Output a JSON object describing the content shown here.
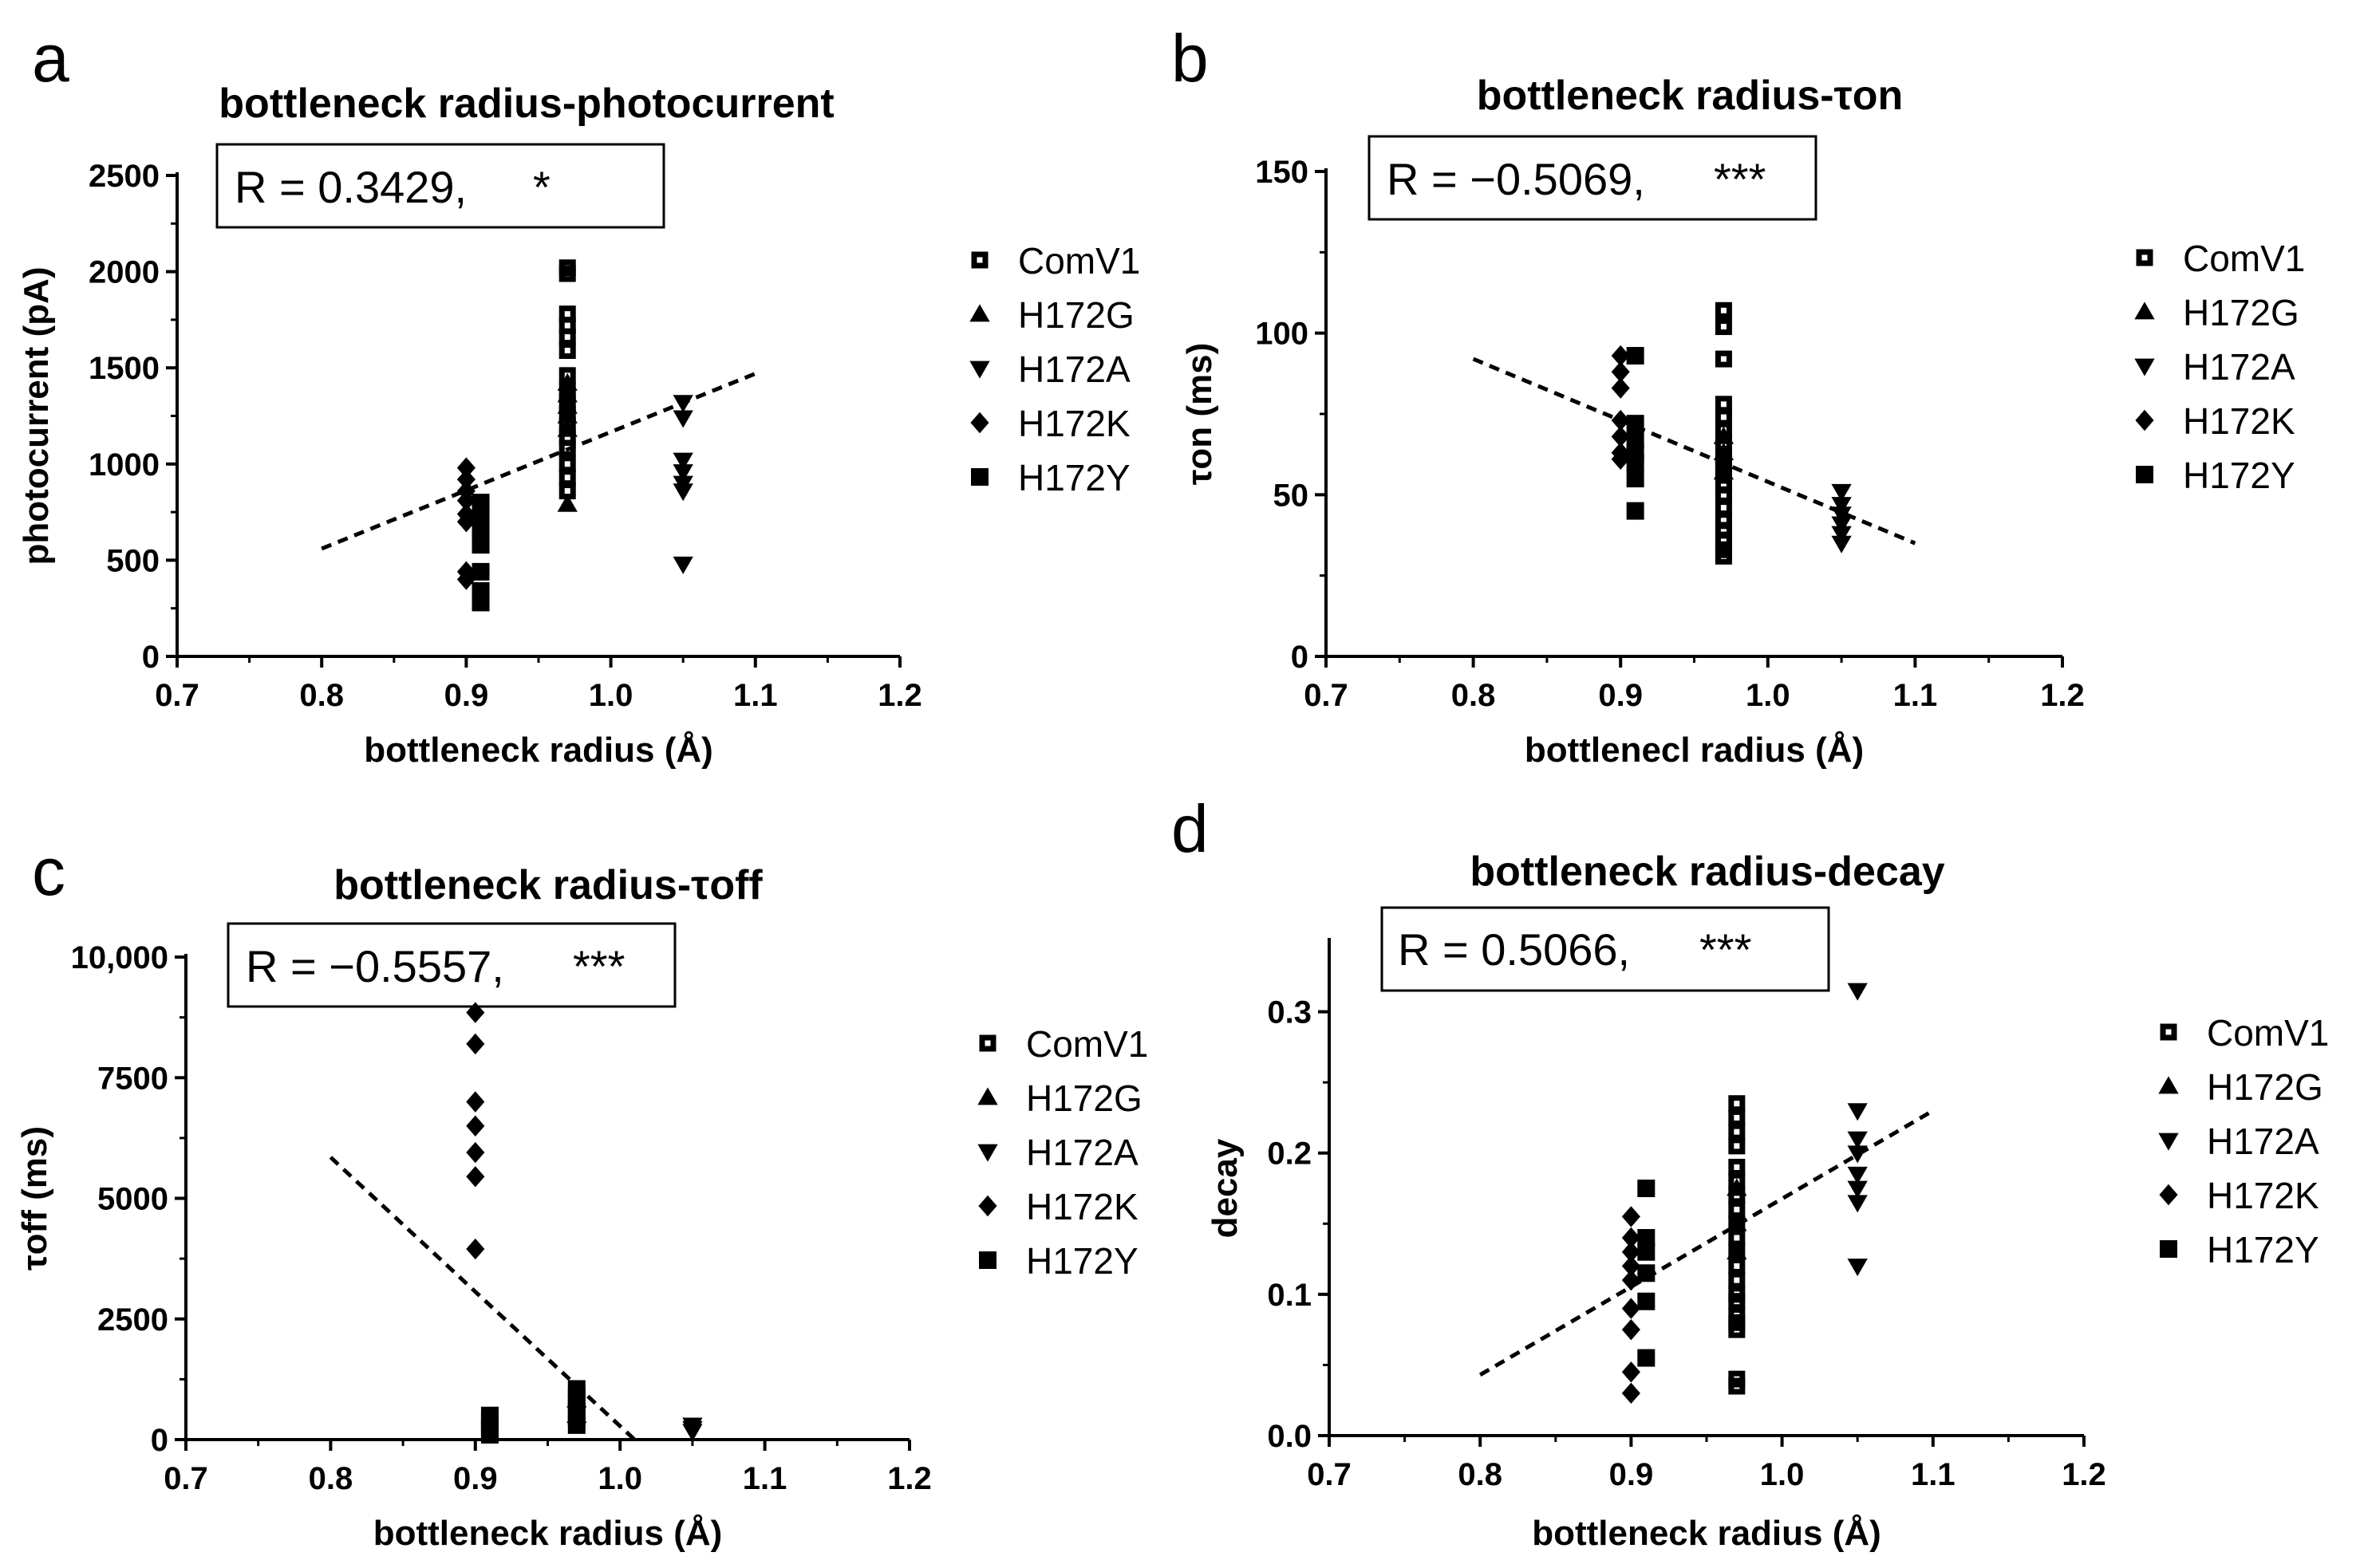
{
  "figure": {
    "panels": [
      {
        "letter": "a",
        "title": "bottleneck radius-photocurrent",
        "r_label": "R = 0.3429,",
        "significance": "*"
      },
      {
        "letter": "b",
        "title": "bottleneck radius-τon",
        "r_label": "R = −0.5069,",
        "significance": "***"
      },
      {
        "letter": "c",
        "title": "bottleneck radius-τoff",
        "r_label": "R = −0.5557,",
        "significance": "***"
      },
      {
        "letter": "d",
        "title": "bottleneck radius-decay",
        "r_label": "R = 0.5066,",
        "significance": "***"
      }
    ]
  },
  "chart_data": [
    {
      "type": "scatter",
      "title": "bottleneck radius-photocurrent",
      "xlabel": "bottleneck radius (Å)",
      "ylabel": "photocurrent (pA)",
      "xlim": [
        0.7,
        1.2
      ],
      "ylim": [
        0,
        2500
      ],
      "x_ticks": [
        0.7,
        0.8,
        0.9,
        1.0,
        1.1,
        1.2
      ],
      "x_tick_labels": [
        "0.7",
        "0.8",
        "0.9",
        "1.0",
        "1.1",
        "1.2"
      ],
      "y_ticks": [
        0,
        500,
        1000,
        1500,
        2000,
        2500
      ],
      "y_tick_labels": [
        "0",
        "500",
        "1000",
        "1500",
        "2000",
        "2500"
      ],
      "series": [
        {
          "name": "ComV1",
          "marker": "square-open",
          "x": [
            0.97,
            0.97,
            0.97,
            0.97,
            0.97,
            0.97,
            0.97,
            0.97,
            0.97,
            0.97,
            0.97,
            0.97,
            0.97,
            0.97,
            0.97,
            0.97
          ],
          "y": [
            2020,
            1990,
            1780,
            1720,
            1660,
            1590,
            1460,
            1380,
            1320,
            1260,
            1200,
            1140,
            1080,
            1000,
            930,
            860
          ]
        },
        {
          "name": "H172G",
          "marker": "triangle-up",
          "x": [
            0.97,
            0.97,
            0.97,
            0.97,
            0.97,
            0.97
          ],
          "y": [
            1420,
            1360,
            1300,
            1250,
            1180,
            790
          ]
        },
        {
          "name": "H172A",
          "marker": "triangle-down",
          "x": [
            1.05,
            1.05,
            1.05,
            1.05,
            1.05,
            1.05,
            1.05
          ],
          "y": [
            1320,
            1240,
            1020,
            960,
            900,
            860,
            480
          ]
        },
        {
          "name": "H172K",
          "marker": "diamond",
          "x": [
            0.9,
            0.9,
            0.9,
            0.9,
            0.9,
            0.9,
            0.9,
            0.9
          ],
          "y": [
            980,
            920,
            860,
            810,
            740,
            700,
            440,
            400
          ]
        },
        {
          "name": "H172Y",
          "marker": "square",
          "x": [
            0.91,
            0.91,
            0.91,
            0.91,
            0.91,
            0.91,
            0.91
          ],
          "y": [
            800,
            740,
            650,
            580,
            440,
            340,
            280
          ]
        }
      ],
      "fit_line": {
        "x": [
          0.8,
          1.1
        ],
        "y": [
          560,
          1470
        ]
      }
    },
    {
      "type": "scatter",
      "title": "bottleneck radius-τon",
      "xlabel": "bottlenecl radius (Å)",
      "ylabel": "τon (ms)",
      "xlim": [
        0.7,
        1.2
      ],
      "ylim": [
        0,
        150
      ],
      "x_ticks": [
        0.7,
        0.8,
        0.9,
        1.0,
        1.1,
        1.2
      ],
      "x_tick_labels": [
        "0.7",
        "0.8",
        "0.9",
        "1.0",
        "1.1",
        "1.2"
      ],
      "y_ticks": [
        0,
        50,
        100,
        150
      ],
      "y_tick_labels": [
        "0",
        "50",
        "100",
        "150"
      ],
      "series": [
        {
          "name": "ComV1",
          "marker": "square-open",
          "x": [
            0.97,
            0.97,
            0.97,
            0.97,
            0.97,
            0.97,
            0.97,
            0.97,
            0.97,
            0.97,
            0.97,
            0.97,
            0.97,
            0.97,
            0.97,
            0.97,
            0.97,
            0.97,
            0.97
          ],
          "y": [
            107,
            102,
            92,
            78,
            74,
            70,
            66,
            62,
            60,
            58,
            56,
            53,
            50,
            46,
            42,
            39,
            36,
            33,
            31
          ]
        },
        {
          "name": "H172G",
          "marker": "triangle-up",
          "x": [
            0.97,
            0.97,
            0.97
          ],
          "y": [
            68,
            63,
            57
          ]
        },
        {
          "name": "H172A",
          "marker": "triangle-down",
          "x": [
            1.05,
            1.05,
            1.05,
            1.05,
            1.05,
            1.05
          ],
          "y": [
            51,
            47,
            44,
            41,
            38,
            35
          ]
        },
        {
          "name": "H172K",
          "marker": "diamond",
          "x": [
            0.9,
            0.9,
            0.9,
            0.9,
            0.9,
            0.9,
            0.9
          ],
          "y": [
            93,
            88,
            83,
            73,
            68,
            63,
            61
          ]
        },
        {
          "name": "H172Y",
          "marker": "square",
          "x": [
            0.91,
            0.91,
            0.91,
            0.91,
            0.91,
            0.91,
            0.91
          ],
          "y": [
            93,
            72,
            67,
            63,
            60,
            55,
            45
          ]
        }
      ],
      "fit_line": {
        "x": [
          0.8,
          1.1
        ],
        "y": [
          92,
          35
        ]
      }
    },
    {
      "type": "scatter",
      "title": "bottleneck radius-τoff",
      "xlabel": "bottleneck radius (Å)",
      "ylabel": "τoff (ms)",
      "xlim": [
        0.7,
        1.2
      ],
      "ylim": [
        0,
        10000
      ],
      "x_ticks": [
        0.7,
        0.8,
        0.9,
        1.0,
        1.1,
        1.2
      ],
      "x_tick_labels": [
        "0.7",
        "0.8",
        "0.9",
        "1.0",
        "1.1",
        "1.2"
      ],
      "y_ticks": [
        0,
        2500,
        5000,
        7500,
        10000
      ],
      "y_tick_labels": [
        "0",
        "2500",
        "5000",
        "7500",
        "10,000"
      ],
      "series": [
        {
          "name": "ComV1",
          "marker": "square-open",
          "x": [
            0.97,
            0.97,
            0.97,
            0.97,
            0.97,
            0.97
          ],
          "y": [
            1050,
            900,
            750,
            600,
            450,
            300
          ]
        },
        {
          "name": "H172G",
          "marker": "triangle-up",
          "x": [
            0.97,
            0.97
          ],
          "y": [
            820,
            500
          ]
        },
        {
          "name": "H172A",
          "marker": "triangle-down",
          "x": [
            1.05,
            1.05,
            1.05
          ],
          "y": [
            300,
            230,
            170
          ]
        },
        {
          "name": "H172K",
          "marker": "diamond",
          "x": [
            0.9,
            0.9,
            0.9,
            0.9,
            0.9,
            0.9,
            0.9
          ],
          "y": [
            8850,
            8200,
            7000,
            6500,
            5950,
            5450,
            3950
          ]
        },
        {
          "name": "H172Y",
          "marker": "square",
          "x": [
            0.91,
            0.91,
            0.91,
            0.91,
            0.91,
            0.91,
            0.97,
            0.97,
            0.97,
            0.97,
            0.97,
            0.97
          ],
          "y": [
            500,
            420,
            340,
            260,
            180,
            100,
            1050,
            900,
            750,
            600,
            450,
            300
          ]
        }
      ],
      "fit_line": {
        "x": [
          0.8,
          1.01
        ],
        "y": [
          5850,
          0
        ]
      }
    },
    {
      "type": "scatter",
      "title": "bottleneck radius-decay",
      "xlabel": "bottleneck radius (Å)",
      "ylabel": "decay",
      "xlim": [
        0.7,
        1.2
      ],
      "ylim": [
        0.0,
        0.35
      ],
      "x_ticks": [
        0.7,
        0.8,
        0.9,
        1.0,
        1.1,
        1.2
      ],
      "x_tick_labels": [
        "0.7",
        "0.8",
        "0.9",
        "1.0",
        "1.1",
        "1.2"
      ],
      "y_ticks": [
        0.0,
        0.1,
        0.2,
        0.3
      ],
      "y_tick_labels": [
        "0.0",
        "0.1",
        "0.2",
        "0.3"
      ],
      "series": [
        {
          "name": "ComV1",
          "marker": "square-open",
          "x": [
            0.97,
            0.97,
            0.97,
            0.97,
            0.97,
            0.97,
            0.97,
            0.97,
            0.97,
            0.97,
            0.97,
            0.97,
            0.97,
            0.97,
            0.97,
            0.97,
            0.97,
            0.97,
            0.97,
            0.97
          ],
          "y": [
            0.235,
            0.225,
            0.215,
            0.205,
            0.19,
            0.18,
            0.17,
            0.16,
            0.15,
            0.14,
            0.13,
            0.12,
            0.11,
            0.1,
            0.095,
            0.085,
            0.08,
            0.075,
            0.04,
            0.035
          ]
        },
        {
          "name": "H172G",
          "marker": "triangle-up",
          "x": [
            0.97,
            0.97,
            0.97
          ],
          "y": [
            0.175,
            0.15,
            0.13
          ]
        },
        {
          "name": "H172A",
          "marker": "triangle-down",
          "x": [
            1.05,
            1.05,
            1.05,
            1.05,
            1.05,
            1.05,
            1.05,
            1.05
          ],
          "y": [
            0.315,
            0.23,
            0.21,
            0.2,
            0.185,
            0.175,
            0.165,
            0.12
          ]
        },
        {
          "name": "H172K",
          "marker": "diamond",
          "x": [
            0.9,
            0.9,
            0.9,
            0.9,
            0.9,
            0.9,
            0.9,
            0.9,
            0.9
          ],
          "y": [
            0.155,
            0.14,
            0.13,
            0.12,
            0.11,
            0.09,
            0.075,
            0.045,
            0.03
          ]
        },
        {
          "name": "H172Y",
          "marker": "square",
          "x": [
            0.91,
            0.91,
            0.91,
            0.91,
            0.91,
            0.91
          ],
          "y": [
            0.175,
            0.14,
            0.13,
            0.115,
            0.095,
            0.055
          ]
        }
      ],
      "fit_line": {
        "x": [
          0.8,
          1.1
        ],
        "y": [
          0.043,
          0.23
        ]
      }
    }
  ]
}
